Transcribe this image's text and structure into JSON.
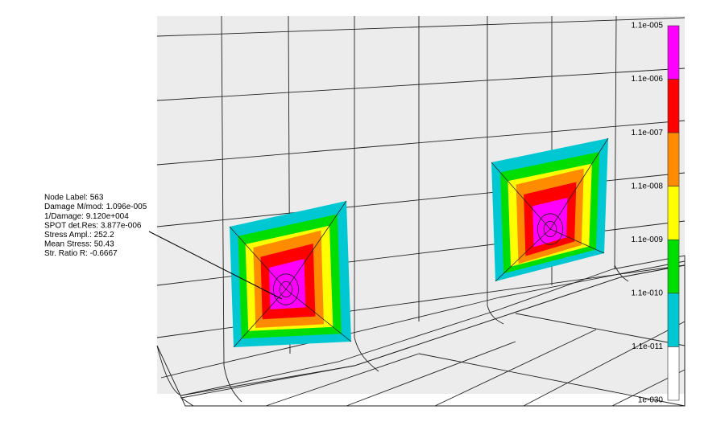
{
  "annotation": {
    "lines": [
      "Node Label: 563",
      "Damage M/mod: 1.096e-005",
      "1/Damage: 9.120e+004",
      "SPOT det.Res: 3.877e-006",
      "Stress Ampl.: 252.2",
      "Mean Stress: 50.43",
      "Str. Ratio R: -0.6667"
    ]
  },
  "legend": {
    "labels": [
      "1.1e-005",
      "1.1e-006",
      "1.1e-007",
      "1.1e-008",
      "1.1e-009",
      "1.1e-010",
      "1.1e-011",
      "1e-030"
    ],
    "band_colors": [
      "#ff00ff",
      "#ff0000",
      "#ff8c00",
      "#ffff00",
      "#00dd00",
      "#00c8d2",
      "#ffffff"
    ]
  }
}
